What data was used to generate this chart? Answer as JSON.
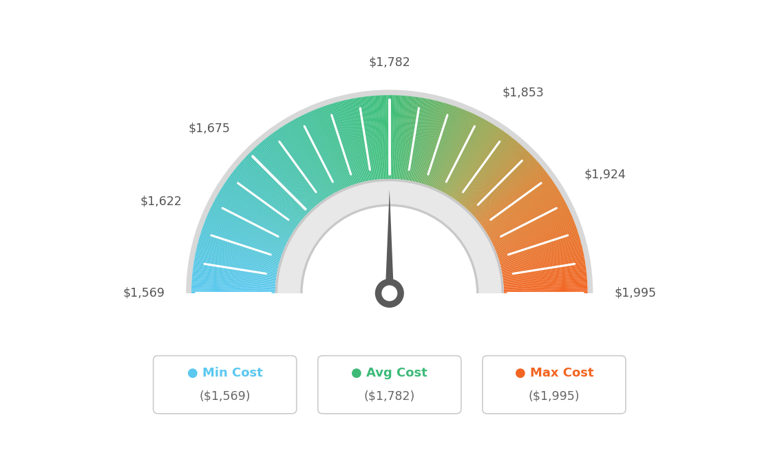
{
  "min_val": 1569,
  "max_val": 1995,
  "avg_val": 1782,
  "labels": [
    "$1,569",
    "$1,622",
    "$1,675",
    "$1,782",
    "$1,853",
    "$1,924",
    "$1,995"
  ],
  "label_values": [
    1569,
    1622,
    1675,
    1782,
    1853,
    1924,
    1995
  ],
  "min_cost_color": "#5bc8f0",
  "avg_cost_color": "#3dba78",
  "max_cost_color": "#f26522",
  "needle_color": "#5a5a5a",
  "background_color": "#ffffff",
  "legend_min_label": "Min Cost",
  "legend_avg_label": "Avg Cost",
  "legend_max_label": "Max Cost",
  "legend_min_value": "($1,569)",
  "legend_avg_value": "($1,782)",
  "legend_max_value": "($1,995)",
  "gauge_color_stops": [
    [
      0.0,
      [
        91,
        200,
        240
      ]
    ],
    [
      0.25,
      [
        72,
        195,
        180
      ]
    ],
    [
      0.5,
      [
        61,
        190,
        120
      ]
    ],
    [
      0.68,
      [
        160,
        165,
        80
      ]
    ],
    [
      0.8,
      [
        220,
        130,
        50
      ]
    ],
    [
      1.0,
      [
        242,
        101,
        34
      ]
    ]
  ]
}
